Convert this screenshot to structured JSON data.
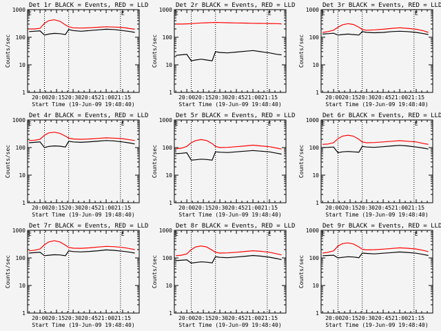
{
  "figure": {
    "ylabel": "Counts/sec",
    "xlabel": "Start Time (19-Jun-09 19:48:40)",
    "x_tick_labels": [
      "20:00",
      "20:15",
      "20:30",
      "20:45",
      "21:00",
      "21:15"
    ],
    "y_tick_labels": [
      "1",
      "10",
      "100",
      "1000"
    ],
    "corner_marks": [
      "E",
      "E"
    ],
    "colors": {
      "events": "#000000",
      "lld": "#ff0000",
      "background": "#f4f4f4"
    }
  },
  "chart_data": [
    {
      "type": "line",
      "title": "Det 1r BLACK = Events, RED = LLD",
      "xlabel": "Start Time (19-Jun-09 19:48:40)",
      "ylabel": "Counts/sec",
      "x_ticks": [
        "20:00",
        "20:15",
        "20:30",
        "20:45",
        "21:00",
        "21:15"
      ],
      "y_scale": "log",
      "ylim": [
        1,
        1000
      ],
      "grid": false,
      "x": [
        "19:50",
        "19:55",
        "20:00",
        "20:04",
        "20:08",
        "20:13",
        "20:18",
        "20:23",
        "20:26",
        "20:30",
        "20:37",
        "20:45",
        "20:53",
        "21:00",
        "21:07",
        "21:15",
        "21:22",
        "21:26"
      ],
      "series": [
        {
          "values": [
            160,
            165,
            170,
            120,
            130,
            138,
            135,
            125,
            190,
            175,
            165,
            175,
            185,
            195,
            190,
            175,
            160,
            150
          ]
        },
        {
          "values": [
            200,
            200,
            210,
            320,
            400,
            430,
            380,
            280,
            240,
            220,
            215,
            220,
            230,
            240,
            235,
            225,
            205,
            195
          ]
        }
      ],
      "verticals": [
        "20:04",
        "20:26",
        "21:13"
      ]
    },
    {
      "type": "line",
      "title": "Det 2r BLACK = Events, RED = LLD",
      "xlabel": "Start Time (19-Jun-09 19:48:40)",
      "ylabel": "Counts/sec",
      "x_ticks": [
        "20:00",
        "20:15",
        "20:30",
        "20:45",
        "21:00",
        "21:15"
      ],
      "y_scale": "log",
      "ylim": [
        1,
        1000
      ],
      "grid": false,
      "x": [
        "19:50",
        "19:55",
        "20:00",
        "20:04",
        "20:08",
        "20:13",
        "20:18",
        "20:23",
        "20:26",
        "20:30",
        "20:37",
        "20:45",
        "20:53",
        "21:00",
        "21:07",
        "21:15",
        "21:22",
        "21:26"
      ],
      "series": [
        {
          "values": [
            22,
            23,
            24,
            14,
            15,
            16,
            15,
            14,
            30,
            28,
            27,
            29,
            31,
            33,
            30,
            27,
            24,
            23
          ]
        },
        {
          "values": [
            300,
            300,
            305,
            310,
            320,
            330,
            335,
            340,
            345,
            340,
            335,
            330,
            325,
            320,
            318,
            315,
            310,
            305
          ]
        }
      ],
      "verticals": [
        "20:04",
        "20:26",
        "21:13"
      ]
    },
    {
      "type": "line",
      "title": "Det 3r BLACK = Events, RED = LLD",
      "xlabel": "Start Time (19-Jun-09 19:48:40)",
      "ylabel": "Counts/sec",
      "x_ticks": [
        "20:00",
        "20:15",
        "20:30",
        "20:45",
        "21:00",
        "21:15"
      ],
      "y_scale": "log",
      "ylim": [
        1,
        1000
      ],
      "grid": false,
      "x": [
        "19:50",
        "19:55",
        "20:00",
        "20:04",
        "20:08",
        "20:13",
        "20:18",
        "20:23",
        "20:26",
        "20:30",
        "20:37",
        "20:45",
        "20:53",
        "21:00",
        "21:07",
        "21:15",
        "21:22",
        "21:26"
      ],
      "series": [
        {
          "values": [
            130,
            135,
            140,
            120,
            125,
            130,
            125,
            120,
            160,
            150,
            145,
            150,
            160,
            165,
            160,
            150,
            135,
            125
          ]
        },
        {
          "values": [
            150,
            160,
            180,
            230,
            280,
            310,
            290,
            230,
            190,
            180,
            185,
            195,
            210,
            220,
            210,
            195,
            170,
            150
          ]
        }
      ],
      "verticals": [
        "20:04",
        "20:26",
        "21:13"
      ]
    },
    {
      "type": "line",
      "title": "Det 4r BLACK = Events, RED = LLD",
      "xlabel": "Start Time (19-Jun-09 19:48:40)",
      "ylabel": "Counts/sec",
      "x_ticks": [
        "20:00",
        "20:15",
        "20:30",
        "20:45",
        "21:00",
        "21:15"
      ],
      "y_scale": "log",
      "ylim": [
        1,
        1000
      ],
      "grid": false,
      "x": [
        "19:50",
        "19:55",
        "20:00",
        "20:04",
        "20:08",
        "20:13",
        "20:18",
        "20:23",
        "20:26",
        "20:30",
        "20:37",
        "20:45",
        "20:53",
        "21:00",
        "21:07",
        "21:15",
        "21:22",
        "21:26"
      ],
      "series": [
        {
          "values": [
            150,
            155,
            160,
            100,
            110,
            115,
            112,
            105,
            170,
            160,
            155,
            162,
            172,
            180,
            175,
            160,
            145,
            135
          ]
        },
        {
          "values": [
            180,
            185,
            200,
            280,
            340,
            360,
            330,
            260,
            220,
            205,
            200,
            205,
            215,
            225,
            220,
            210,
            190,
            180
          ]
        }
      ],
      "verticals": [
        "20:04",
        "20:26",
        "21:13"
      ]
    },
    {
      "type": "line",
      "title": "Det 5r BLACK = Events, RED = LLD",
      "xlabel": "Start Time (19-Jun-09 19:48:40)",
      "ylabel": "Counts/sec",
      "x_ticks": [
        "20:00",
        "20:15",
        "20:30",
        "20:45",
        "21:00",
        "21:15"
      ],
      "y_scale": "log",
      "ylim": [
        1,
        1000
      ],
      "grid": false,
      "x": [
        "19:50",
        "19:55",
        "20:00",
        "20:04",
        "20:08",
        "20:13",
        "20:18",
        "20:23",
        "20:26",
        "20:30",
        "20:37",
        "20:45",
        "20:53",
        "21:00",
        "21:07",
        "21:15",
        "21:22",
        "21:26"
      ],
      "series": [
        {
          "values": [
            60,
            62,
            65,
            35,
            36,
            38,
            37,
            35,
            70,
            68,
            66,
            70,
            74,
            78,
            74,
            70,
            62,
            58
          ]
        },
        {
          "values": [
            90,
            95,
            110,
            150,
            180,
            195,
            180,
            140,
            110,
            100,
            102,
            108,
            115,
            122,
            115,
            108,
            95,
            88
          ]
        }
      ],
      "verticals": [
        "20:04",
        "20:26",
        "21:13"
      ]
    },
    {
      "type": "line",
      "title": "Det 6r BLACK = Events, RED = LLD",
      "xlabel": "Start Time (19-Jun-09 19:48:40)",
      "ylabel": "Counts/sec",
      "x_ticks": [
        "20:00",
        "20:15",
        "20:30",
        "20:45",
        "21:00",
        "21:15"
      ],
      "y_scale": "log",
      "ylim": [
        1,
        1000
      ],
      "grid": false,
      "x": [
        "19:50",
        "19:55",
        "20:00",
        "20:04",
        "20:08",
        "20:13",
        "20:18",
        "20:23",
        "20:26",
        "20:30",
        "20:37",
        "20:45",
        "20:53",
        "21:00",
        "21:07",
        "21:15",
        "21:22",
        "21:26"
      ],
      "series": [
        {
          "values": [
            100,
            102,
            105,
            65,
            70,
            72,
            70,
            68,
            110,
            105,
            102,
            108,
            115,
            120,
            115,
            105,
            95,
            88
          ]
        },
        {
          "values": [
            130,
            135,
            150,
            210,
            260,
            280,
            260,
            200,
            160,
            150,
            152,
            160,
            170,
            178,
            170,
            160,
            140,
            130
          ]
        }
      ],
      "verticals": [
        "20:04",
        "20:26",
        "21:13"
      ]
    },
    {
      "type": "line",
      "title": "Det 7r BLACK = Events, RED = LLD",
      "xlabel": "Start Time (19-Jun-09 19:48:40)",
      "ylabel": "Counts/sec",
      "x_ticks": [
        "20:00",
        "20:15",
        "20:30",
        "20:45",
        "21:00",
        "21:15"
      ],
      "y_scale": "log",
      "ylim": [
        1,
        1000
      ],
      "grid": false,
      "x": [
        "19:50",
        "19:55",
        "20:00",
        "20:04",
        "20:08",
        "20:13",
        "20:18",
        "20:23",
        "20:26",
        "20:30",
        "20:37",
        "20:45",
        "20:53",
        "21:00",
        "21:07",
        "21:15",
        "21:22",
        "21:26"
      ],
      "series": [
        {
          "values": [
            150,
            155,
            160,
            120,
            125,
            130,
            128,
            120,
            180,
            170,
            165,
            172,
            182,
            195,
            188,
            175,
            160,
            150
          ]
        },
        {
          "values": [
            180,
            190,
            210,
            300,
            380,
            420,
            380,
            290,
            240,
            225,
            222,
            232,
            248,
            262,
            255,
            240,
            215,
            200
          ]
        }
      ],
      "verticals": [
        "20:04",
        "20:26",
        "21:13"
      ]
    },
    {
      "type": "line",
      "title": "Det 8r BLACK = Events, RED = LLD",
      "xlabel": "Start Time (19-Jun-09 19:48:40)",
      "ylabel": "Counts/sec",
      "x_ticks": [
        "20:00",
        "20:15",
        "20:30",
        "20:45",
        "21:00",
        "21:15"
      ],
      "y_scale": "log",
      "ylim": [
        1,
        1000
      ],
      "grid": false,
      "x": [
        "19:50",
        "19:55",
        "20:00",
        "20:04",
        "20:08",
        "20:13",
        "20:18",
        "20:23",
        "20:26",
        "20:30",
        "20:37",
        "20:45",
        "20:53",
        "21:00",
        "21:07",
        "21:15",
        "21:22",
        "21:26"
      ],
      "series": [
        {
          "values": [
            80,
            82,
            85,
            65,
            68,
            72,
            70,
            66,
            110,
            105,
            102,
            108,
            115,
            122,
            116,
            106,
            94,
            86
          ]
        },
        {
          "values": [
            120,
            125,
            140,
            200,
            250,
            270,
            250,
            190,
            160,
            150,
            152,
            160,
            172,
            182,
            174,
            160,
            140,
            128
          ]
        }
      ],
      "verticals": [
        "20:04",
        "20:26",
        "21:13"
      ]
    },
    {
      "type": "line",
      "title": "Det 9r BLACK = Events, RED = LLD",
      "xlabel": "Start Time (19-Jun-09 19:48:40)",
      "ylabel": "Counts/sec",
      "x_ticks": [
        "20:00",
        "20:15",
        "20:30",
        "20:45",
        "21:00",
        "21:15"
      ],
      "y_scale": "log",
      "ylim": [
        1,
        1000
      ],
      "grid": false,
      "x": [
        "19:50",
        "19:55",
        "20:00",
        "20:04",
        "20:08",
        "20:13",
        "20:18",
        "20:23",
        "20:26",
        "20:30",
        "20:37",
        "20:45",
        "20:53",
        "21:00",
        "21:07",
        "21:15",
        "21:22",
        "21:26"
      ],
      "series": [
        {
          "values": [
            120,
            122,
            125,
            100,
            105,
            110,
            108,
            102,
            150,
            145,
            140,
            148,
            156,
            164,
            158,
            148,
            132,
            122
          ]
        },
        {
          "values": [
            150,
            160,
            180,
            270,
            330,
            350,
            320,
            250,
            205,
            195,
            198,
            208,
            220,
            232,
            224,
            210,
            185,
            170
          ]
        }
      ],
      "verticals": [
        "20:04",
        "20:26",
        "21:13"
      ]
    }
  ]
}
